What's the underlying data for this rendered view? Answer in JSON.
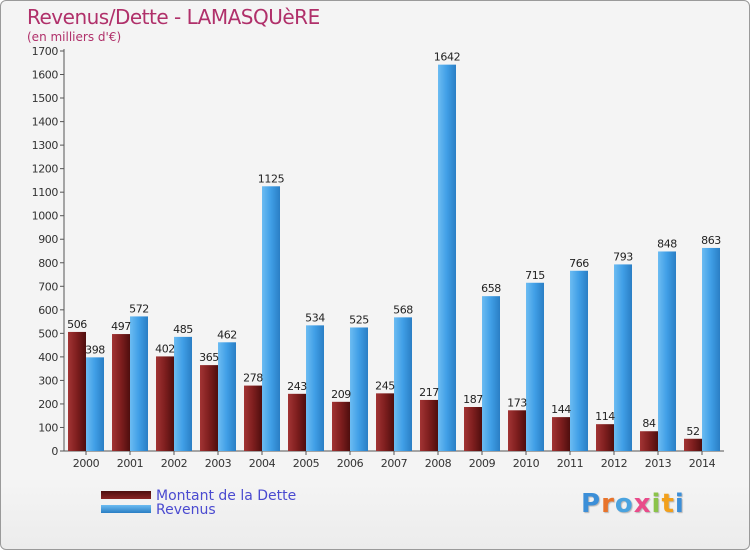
{
  "title": "Revenus/Dette - LAMASQUèRE",
  "subtitle": "(en milliers d'€)",
  "logo_text": "Proxiti",
  "chart_data": {
    "type": "bar",
    "categories": [
      "2000",
      "2001",
      "2002",
      "2003",
      "2004",
      "2005",
      "2006",
      "2007",
      "2008",
      "2009",
      "2010",
      "2011",
      "2012",
      "2013",
      "2014"
    ],
    "series": [
      {
        "name": "Montant de la Dette",
        "color": "#7a1c1c",
        "values": [
          506,
          497,
          402,
          365,
          278,
          243,
          209,
          245,
          217,
          187,
          173,
          144,
          114,
          84,
          52
        ]
      },
      {
        "name": "Revenus",
        "color": "#3f9ee6",
        "values": [
          398,
          572,
          485,
          462,
          1125,
          534,
          525,
          568,
          1642,
          658,
          715,
          766,
          793,
          848,
          863
        ]
      }
    ],
    "ylim": [
      0,
      1700
    ],
    "yticks": [
      0,
      100,
      200,
      300,
      400,
      500,
      600,
      700,
      800,
      900,
      1000,
      1100,
      1200,
      1300,
      1400,
      1500,
      1600,
      1700
    ],
    "grid": false,
    "legend_position": "bottom-left"
  }
}
